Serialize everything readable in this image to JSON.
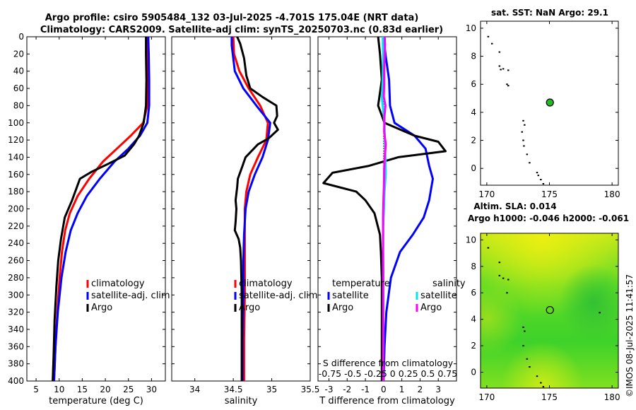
{
  "title": {
    "line1": "Argo profile: csiro 5905484_132 03-Jul-2025 -4.701S 175.04E (NRT data)",
    "line2": "Climatology: CARS2009. Satellite-adj clim: synTS_20250703.nc (0.83d earlier)"
  },
  "watermark": "©IMOS 08-Jul-2025 11:41:57",
  "colors": {
    "climatology": "#ff0000",
    "satellite": "#0000ff",
    "argo": "#000000",
    "satellite_salinity": "#00e5ee",
    "argo_salinity": "#ff00ff",
    "sst_marker": "#22bb22"
  },
  "chart_data": [
    {
      "name": "temperature-profile",
      "type": "line",
      "xlabel": "temperature (deg C)",
      "ylabel": "",
      "xlim": [
        3,
        33
      ],
      "ylim": [
        400,
        0
      ],
      "xticks": [
        "5",
        "10",
        "15",
        "20",
        "25",
        "30"
      ],
      "yticks": [
        "0",
        "20",
        "40",
        "60",
        "80",
        "100",
        "120",
        "140",
        "160",
        "180",
        "200",
        "220",
        "240",
        "260",
        "280",
        "300",
        "320",
        "340",
        "360",
        "380",
        "400"
      ],
      "legend": [
        "climatology",
        "satellite-adj. clim",
        "Argo"
      ],
      "series": [
        {
          "name": "climatology",
          "color": "#ff0000",
          "points": [
            [
              29.2,
              0
            ],
            [
              29.2,
              20
            ],
            [
              29.2,
              50
            ],
            [
              29.1,
              80
            ],
            [
              28.2,
              100
            ],
            [
              25.5,
              115
            ],
            [
              22.5,
              130
            ],
            [
              19.5,
              145
            ],
            [
              16.5,
              165
            ],
            [
              14,
              185
            ],
            [
              12.3,
              205
            ],
            [
              11.3,
              225
            ],
            [
              10.6,
              250
            ],
            [
              10.1,
              280
            ],
            [
              9.6,
              320
            ],
            [
              9.2,
              360
            ],
            [
              8.9,
              400
            ]
          ]
        },
        {
          "name": "satellite-adj. clim",
          "color": "#0000ff",
          "points": [
            [
              29.3,
              0
            ],
            [
              29.4,
              20
            ],
            [
              29.5,
              50
            ],
            [
              29.5,
              80
            ],
            [
              29.1,
              100
            ],
            [
              27.5,
              115
            ],
            [
              25,
              130
            ],
            [
              22,
              145
            ],
            [
              18.8,
              165
            ],
            [
              16,
              185
            ],
            [
              14,
              205
            ],
            [
              12.5,
              225
            ],
            [
              11.4,
              250
            ],
            [
              10.5,
              280
            ],
            [
              9.7,
              320
            ],
            [
              9.2,
              360
            ],
            [
              8.9,
              400
            ]
          ]
        },
        {
          "name": "Argo",
          "color": "#000000",
          "points": [
            [
              28.8,
              0
            ],
            [
              28.8,
              20
            ],
            [
              28.9,
              50
            ],
            [
              28.8,
              80
            ],
            [
              28.3,
              100
            ],
            [
              27.3,
              115
            ],
            [
              26.2,
              125
            ],
            [
              24.2,
              138
            ],
            [
              20.5,
              148
            ],
            [
              17,
              157
            ],
            [
              14.5,
              165
            ],
            [
              12.8,
              190
            ],
            [
              11.2,
              210
            ],
            [
              10.4,
              235
            ],
            [
              9.8,
              260
            ],
            [
              9.4,
              290
            ],
            [
              9,
              330
            ],
            [
              8.8,
              370
            ],
            [
              8.6,
              400
            ]
          ]
        }
      ]
    },
    {
      "name": "salinity-profile",
      "type": "line",
      "xlabel": "salinity",
      "xlim": [
        33.7,
        35.5
      ],
      "ylim": [
        400,
        0
      ],
      "xticks": [
        "34",
        "34.5",
        "35",
        "35.5"
      ],
      "legend": [
        "climatology",
        "satellite-adj. clim",
        "Argo"
      ],
      "series": [
        {
          "name": "climatology",
          "color": "#ff0000",
          "points": [
            [
              34.5,
              0
            ],
            [
              34.51,
              20
            ],
            [
              34.58,
              40
            ],
            [
              34.7,
              60
            ],
            [
              34.85,
              80
            ],
            [
              34.95,
              100
            ],
            [
              34.93,
              120
            ],
            [
              34.82,
              140
            ],
            [
              34.72,
              160
            ],
            [
              34.67,
              180
            ],
            [
              34.65,
              200
            ],
            [
              34.65,
              230
            ],
            [
              34.65,
              260
            ],
            [
              34.65,
              300
            ],
            [
              34.64,
              350
            ],
            [
              34.64,
              400
            ]
          ]
        },
        {
          "name": "satellite-adj. clim",
          "color": "#0000ff",
          "points": [
            [
              34.48,
              0
            ],
            [
              34.48,
              10
            ],
            [
              34.52,
              40
            ],
            [
              34.63,
              60
            ],
            [
              34.8,
              80
            ],
            [
              34.98,
              100
            ],
            [
              34.95,
              120
            ],
            [
              34.88,
              140
            ],
            [
              34.78,
              160
            ],
            [
              34.7,
              180
            ],
            [
              34.66,
              200
            ],
            [
              34.64,
              230
            ],
            [
              34.63,
              260
            ],
            [
              34.63,
              300
            ],
            [
              34.62,
              350
            ],
            [
              34.62,
              400
            ]
          ]
        },
        {
          "name": "Argo",
          "color": "#000000",
          "points": [
            [
              34.55,
              0
            ],
            [
              34.59,
              8
            ],
            [
              34.64,
              25
            ],
            [
              34.67,
              45
            ],
            [
              34.72,
              60
            ],
            [
              34.88,
              70
            ],
            [
              35.06,
              80
            ],
            [
              35.07,
              92
            ],
            [
              35.03,
              100
            ],
            [
              35.08,
              108
            ],
            [
              34.96,
              118
            ],
            [
              34.82,
              125
            ],
            [
              34.66,
              140
            ],
            [
              34.62,
              150
            ],
            [
              34.56,
              165
            ],
            [
              34.55,
              175
            ],
            [
              34.53,
              190
            ],
            [
              34.54,
              200
            ],
            [
              34.53,
              215
            ],
            [
              34.52,
              225
            ],
            [
              34.57,
              235
            ],
            [
              34.59,
              245
            ],
            [
              34.6,
              260
            ],
            [
              34.61,
              300
            ],
            [
              34.61,
              350
            ],
            [
              34.61,
              400
            ]
          ]
        }
      ]
    },
    {
      "name": "difference-profile",
      "type": "line",
      "xlabel": "T difference from climatology",
      "xlim": [
        -3.6,
        4.0
      ],
      "ylim": [
        400,
        0
      ],
      "xticks": [
        "-3",
        "-2",
        "-1",
        "0",
        "1",
        "2",
        "3"
      ],
      "secondary_xlabel": "S difference from climatology",
      "secondary_xticks": "-0.75 -0.5 -0.25 0 0.25 0.5 0.75",
      "legend_temperature": {
        "heading": "temperature",
        "entries": [
          "satellite",
          "Argo"
        ]
      },
      "legend_salinity": {
        "heading": "salinity",
        "entries": [
          "satellite",
          "Argo"
        ]
      },
      "series": [
        {
          "name": "temperature satellite",
          "color": "#0000ff",
          "points": [
            [
              0,
              0
            ],
            [
              0.1,
              20
            ],
            [
              0.3,
              50
            ],
            [
              0.35,
              80
            ],
            [
              0.6,
              100
            ],
            [
              1.7,
              115
            ],
            [
              2.3,
              130
            ],
            [
              2.5,
              150
            ],
            [
              2.7,
              165
            ],
            [
              2.5,
              190
            ],
            [
              2.2,
              210
            ],
            [
              1.6,
              230
            ],
            [
              0.9,
              250
            ],
            [
              0.4,
              280
            ],
            [
              0.15,
              320
            ],
            [
              0.05,
              360
            ],
            [
              0,
              400
            ]
          ]
        },
        {
          "name": "temperature Argo",
          "color": "#000000",
          "points": [
            [
              -0.3,
              0
            ],
            [
              -0.2,
              20
            ],
            [
              -0.1,
              50
            ],
            [
              -0.3,
              80
            ],
            [
              0.05,
              100
            ],
            [
              1.7,
              115
            ],
            [
              3,
              122
            ],
            [
              3.4,
              133
            ],
            [
              0.8,
              140
            ],
            [
              -0.8,
              150
            ],
            [
              -2.8,
              158
            ],
            [
              -3.3,
              170
            ],
            [
              -1.5,
              180
            ],
            [
              -1,
              190
            ],
            [
              -0.5,
              205
            ],
            [
              -0.2,
              230
            ],
            [
              -0.15,
              250
            ],
            [
              -0.1,
              280
            ],
            [
              -0.1,
              320
            ],
            [
              -0.1,
              360
            ],
            [
              -0.1,
              400
            ]
          ]
        },
        {
          "name": "salinity satellite",
          "color": "#00e5ee",
          "points": [
            [
              -0.05,
              0
            ],
            [
              -0.03,
              20
            ],
            [
              -0.05,
              50
            ],
            [
              -0.1,
              70
            ],
            [
              0.05,
              100
            ],
            [
              0.07,
              120
            ],
            [
              0.1,
              140
            ],
            [
              0.12,
              160
            ],
            [
              0.05,
              180
            ],
            [
              0.02,
              200
            ],
            [
              -0.02,
              220
            ],
            [
              -0.03,
              250
            ],
            [
              -0.02,
              280
            ],
            [
              -0.02,
              320
            ],
            [
              -0.02,
              360
            ],
            [
              -0.02,
              400
            ]
          ]
        },
        {
          "name": "salinity Argo",
          "color": "#ff00ff",
          "points": [
            [
              0.06,
              0
            ],
            [
              0.08,
              10
            ],
            [
              0.06,
              20
            ],
            [
              0.03,
              40
            ],
            [
              0.03,
              55
            ],
            [
              0.01,
              70
            ],
            [
              0.1,
              80
            ],
            [
              0.05,
              92
            ],
            [
              0.03,
              110
            ],
            [
              0.12,
              125
            ],
            [
              0.06,
              140
            ],
            [
              0.03,
              155
            ],
            [
              0.02,
              170
            ],
            [
              -0.01,
              190
            ],
            [
              -0.03,
              210
            ],
            [
              -0.03,
              230
            ],
            [
              -0.03,
              250
            ],
            [
              -0.02,
              270
            ],
            [
              -0.02,
              300
            ],
            [
              -0.02,
              350
            ],
            [
              -0.02,
              400
            ]
          ]
        }
      ]
    },
    {
      "name": "sst-map",
      "type": "scatter",
      "title": "sat. SST: NaN Argo: 29.1",
      "xlim": [
        169.5,
        180.5
      ],
      "ylim": [
        -1.2,
        10.5
      ],
      "xticks": [
        "170",
        "175",
        "180"
      ],
      "yticks": [
        "0",
        "2",
        "4",
        "6",
        "8",
        "10"
      ],
      "float_position": [
        175.04,
        4.7
      ],
      "island_points": [
        [
          170.1,
          9.4
        ],
        [
          170.4,
          8.9
        ],
        [
          171.0,
          8.3
        ],
        [
          171.0,
          7.3
        ],
        [
          171.1,
          7.05
        ],
        [
          171.3,
          7.1
        ],
        [
          171.7,
          7.0
        ],
        [
          171.6,
          6.0
        ],
        [
          171.7,
          5.9
        ],
        [
          172.9,
          3.4
        ],
        [
          173.0,
          3.1
        ],
        [
          172.8,
          2.6
        ],
        [
          172.9,
          2.0
        ],
        [
          172.95,
          1.6
        ],
        [
          173.2,
          1.0
        ],
        [
          173.4,
          0.4
        ],
        [
          174.0,
          -0.3
        ],
        [
          174.1,
          -0.5
        ],
        [
          174.3,
          -0.8
        ],
        [
          174.5,
          -1.1
        ]
      ]
    },
    {
      "name": "sla-map",
      "type": "heatmap",
      "title_line1": "Altim. SLA: 0.014",
      "title_line2": "Argo h1000: -0.046 h2000: -0.061",
      "xlim": [
        169.5,
        180.5
      ],
      "ylim": [
        -1.2,
        10.5
      ],
      "xticks": [
        "170",
        "175",
        "180"
      ],
      "yticks": [
        "0",
        "2",
        "4",
        "6",
        "8",
        "10"
      ],
      "float_position": [
        175.04,
        4.7
      ],
      "island_points": [
        [
          170.1,
          9.4
        ],
        [
          171.0,
          8.3
        ],
        [
          171.0,
          7.3
        ],
        [
          171.3,
          7.1
        ],
        [
          171.7,
          7.0
        ],
        [
          171.6,
          6.0
        ],
        [
          172.9,
          3.4
        ],
        [
          173.0,
          3.1
        ],
        [
          172.9,
          2.0
        ],
        [
          173.2,
          1.0
        ],
        [
          173.4,
          0.4
        ],
        [
          174.0,
          -0.3
        ],
        [
          174.3,
          -0.8
        ],
        [
          174.5,
          -1.1
        ],
        [
          179.0,
          4.5
        ]
      ]
    }
  ]
}
